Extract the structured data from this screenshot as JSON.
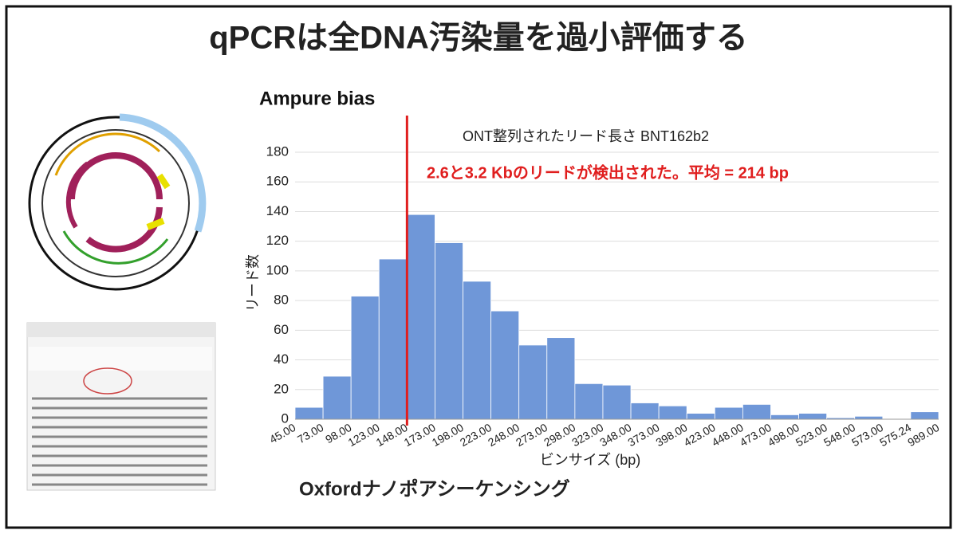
{
  "header": {
    "title": "qPCRは全DNA汚染量を過小評価する"
  },
  "labels": {
    "left_caption": "Oxfordナノポアシーケンシング"
  },
  "chart_data": {
    "type": "histogram",
    "title": "ONT整列されたリード長さ BNT162b2",
    "annotation": "2.6と3.2 Kbのリードが検出された。平均 = 214 bp",
    "x_label": "ビンサイズ (bp)",
    "y_label": "リード数",
    "bins": [
      "45.00",
      "73.00",
      "98.00",
      "123.00",
      "148.00",
      "173.00",
      "198.00",
      "223.00",
      "248.00",
      "273.00",
      "298.00",
      "323.00",
      "348.00",
      "373.00",
      "398.00",
      "423.00",
      "448.00",
      "473.00",
      "498.00",
      "523.00",
      "548.00",
      "573.00",
      "575.24",
      "989.00"
    ],
    "values": [
      8,
      29,
      83,
      108,
      138,
      119,
      93,
      73,
      50,
      55,
      24,
      23,
      11,
      9,
      4,
      8,
      10,
      3,
      4,
      1,
      2,
      0,
      5
    ],
    "color": "#6f97d8",
    "ylim": [
      0,
      180
    ],
    "yticks": [
      0,
      20,
      40,
      60,
      80,
      100,
      120,
      140,
      160,
      180
    ],
    "grid": true,
    "reference_line": {
      "label": "Ampure bias",
      "x": 148,
      "color": "#e01e1e"
    }
  }
}
